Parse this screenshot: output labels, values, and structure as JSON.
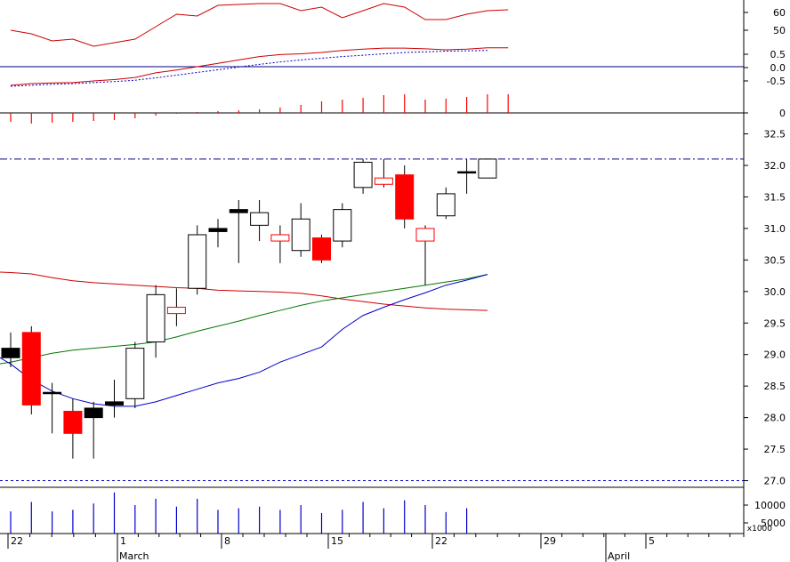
{
  "chart_data": {
    "type": "candlestick",
    "colors": {
      "up": "#000000",
      "down": "#ff0000",
      "ma_short": "#0000cc",
      "ma_mid": "#007700",
      "ma_long": "#cc0000",
      "axis": "#000000",
      "reference": "#000080"
    },
    "x_axis": {
      "day_labels": [
        "22",
        "1",
        "8",
        "15",
        "22",
        "29",
        "5"
      ],
      "month_labels": [
        "March",
        "April"
      ]
    },
    "price_panel": {
      "y_ticks": [
        "27.0",
        "27.5",
        "28.0",
        "28.5",
        "29.0",
        "29.5",
        "30.0",
        "30.5",
        "31.0",
        "31.5",
        "32.0",
        "32.5"
      ],
      "ylim": [
        26.9,
        32.8
      ],
      "reference_lines": [
        32.1,
        27.0
      ],
      "candles": [
        {
          "o": 28.95,
          "h": 29.35,
          "l": 28.8,
          "c": 29.1
        },
        {
          "o": 29.35,
          "h": 29.45,
          "l": 28.05,
          "c": 28.2
        },
        {
          "o": 28.4,
          "h": 28.55,
          "l": 27.75,
          "c": 28.4
        },
        {
          "o": 28.1,
          "h": 28.3,
          "l": 27.35,
          "c": 27.75
        },
        {
          "o": 28.0,
          "h": 28.25,
          "l": 27.35,
          "c": 28.15
        },
        {
          "o": 28.2,
          "h": 28.6,
          "l": 28.0,
          "c": 28.25
        },
        {
          "o": 28.3,
          "h": 29.2,
          "l": 28.15,
          "c": 29.1
        },
        {
          "o": 29.2,
          "h": 30.1,
          "l": 28.95,
          "c": 29.95
        },
        {
          "o": 29.75,
          "h": 30.05,
          "l": 29.45,
          "c": 29.65
        },
        {
          "o": 30.05,
          "h": 31.05,
          "l": 29.95,
          "c": 30.9
        },
        {
          "o": 30.95,
          "h": 31.15,
          "l": 30.7,
          "c": 31.0
        },
        {
          "o": 31.25,
          "h": 31.45,
          "l": 30.45,
          "c": 31.3
        },
        {
          "o": 31.05,
          "h": 31.45,
          "l": 30.8,
          "c": 31.25
        },
        {
          "o": 30.9,
          "h": 31.05,
          "l": 30.45,
          "c": 30.8
        },
        {
          "o": 30.65,
          "h": 31.4,
          "l": 30.55,
          "c": 31.15
        },
        {
          "o": 30.85,
          "h": 30.9,
          "l": 30.45,
          "c": 30.5
        },
        {
          "o": 30.8,
          "h": 31.4,
          "l": 30.7,
          "c": 31.3
        },
        {
          "o": 31.65,
          "h": 32.1,
          "l": 31.55,
          "c": 32.05
        },
        {
          "o": 31.8,
          "h": 32.1,
          "l": 31.65,
          "c": 31.7
        },
        {
          "o": 31.85,
          "h": 32.0,
          "l": 31.0,
          "c": 31.15
        },
        {
          "o": 31.0,
          "h": 31.05,
          "l": 30.1,
          "c": 30.8
        },
        {
          "o": 31.2,
          "h": 31.65,
          "l": 31.15,
          "c": 31.55
        },
        {
          "o": 31.9,
          "h": 32.1,
          "l": 31.55,
          "c": 31.9
        },
        {
          "o": 31.8,
          "h": 32.1,
          "l": 31.8,
          "c": 32.1
        }
      ],
      "ma_short": [
        28.85,
        28.6,
        28.42,
        28.3,
        28.22,
        28.18,
        28.18,
        28.25,
        28.35,
        28.45,
        28.55,
        28.62,
        28.72,
        28.88,
        29.0,
        29.12,
        29.4,
        29.62,
        29.75,
        29.87,
        29.98,
        30.1,
        30.18,
        30.27
      ],
      "ma_mid": [
        28.88,
        28.95,
        29.02,
        29.07,
        29.1,
        29.13,
        29.16,
        29.2,
        29.28,
        29.37,
        29.45,
        29.53,
        29.62,
        29.7,
        29.78,
        29.85,
        29.9,
        29.95,
        30.0,
        30.05,
        30.1,
        30.15,
        30.2,
        30.27
      ],
      "ma_long": [
        30.3,
        30.28,
        30.22,
        30.17,
        30.14,
        30.12,
        30.1,
        30.08,
        30.06,
        30.05,
        30.02,
        30.01,
        30.0,
        29.99,
        29.97,
        29.93,
        29.88,
        29.84,
        29.8,
        29.77,
        29.74,
        29.72,
        29.71,
        29.7
      ]
    },
    "oscillator_top": {
      "y_ticks": [
        "60",
        "50"
      ],
      "ylim": [
        40,
        70
      ],
      "line_x": [
        0,
        1,
        2,
        3,
        4,
        5,
        6,
        7,
        8,
        9,
        10,
        11,
        12,
        13,
        14,
        15,
        16,
        17,
        18,
        19,
        20,
        21,
        22,
        23,
        24
      ],
      "values": [
        53,
        51,
        47,
        48,
        44,
        46,
        48,
        55,
        62,
        61,
        67,
        67.5,
        68,
        68,
        64,
        66,
        60,
        64,
        68,
        66,
        59,
        59,
        62,
        64,
        64.5
      ]
    },
    "oscillator_mid": {
      "y_ticks": [
        "0.5",
        "0.0",
        "-0.5"
      ],
      "ylim": [
        -0.7,
        1.0
      ],
      "zero_line": 0.0,
      "line_x": [
        0,
        1,
        2,
        3,
        4,
        5,
        6,
        7,
        8,
        9,
        10,
        11,
        12,
        13,
        14,
        15,
        16,
        17,
        18,
        19,
        20,
        21,
        22,
        23,
        24
      ],
      "signal_x": [
        0,
        1,
        2,
        3,
        4,
        5,
        6,
        7,
        8,
        9,
        10,
        11,
        12,
        13,
        14,
        15,
        16,
        17,
        18,
        19,
        20,
        21,
        22,
        23
      ],
      "values": [
        -0.55,
        -0.5,
        -0.48,
        -0.47,
        -0.42,
        -0.38,
        -0.32,
        -0.18,
        -0.1,
        0.0,
        0.1,
        0.2,
        0.3,
        0.36,
        0.38,
        0.42,
        0.48,
        0.52,
        0.55,
        0.55,
        0.53,
        0.5,
        0.52,
        0.56,
        0.56
      ],
      "signal": [
        -0.58,
        -0.55,
        -0.52,
        -0.5,
        -0.47,
        -0.44,
        -0.4,
        -0.33,
        -0.25,
        -0.17,
        -0.09,
        -0.01,
        0.07,
        0.14,
        0.2,
        0.25,
        0.3,
        0.34,
        0.38,
        0.42,
        0.44,
        0.46,
        0.47,
        0.48
      ]
    },
    "histogram": {
      "y_ticks": [
        "0"
      ],
      "ylim": [
        -15,
        25
      ],
      "values": [
        -10,
        -12,
        -11,
        -10,
        -9,
        -8,
        -6,
        -3,
        -1,
        1,
        2,
        3,
        4,
        6,
        9,
        13,
        15,
        17,
        20,
        21,
        15,
        16,
        18,
        21,
        21
      ]
    },
    "volume_panel": {
      "y_ticks": [
        "10000",
        "5000"
      ],
      "unit_label": "x1000",
      "ylim": [
        0,
        13500
      ],
      "values": [
        7000,
        10000,
        7000,
        7500,
        9500,
        13000,
        9000,
        11000,
        8500,
        11000,
        7500,
        8000,
        8500,
        7500,
        9000,
        6500,
        7500,
        10000,
        8000,
        10500,
        9000,
        6800,
        8000
      ]
    }
  }
}
